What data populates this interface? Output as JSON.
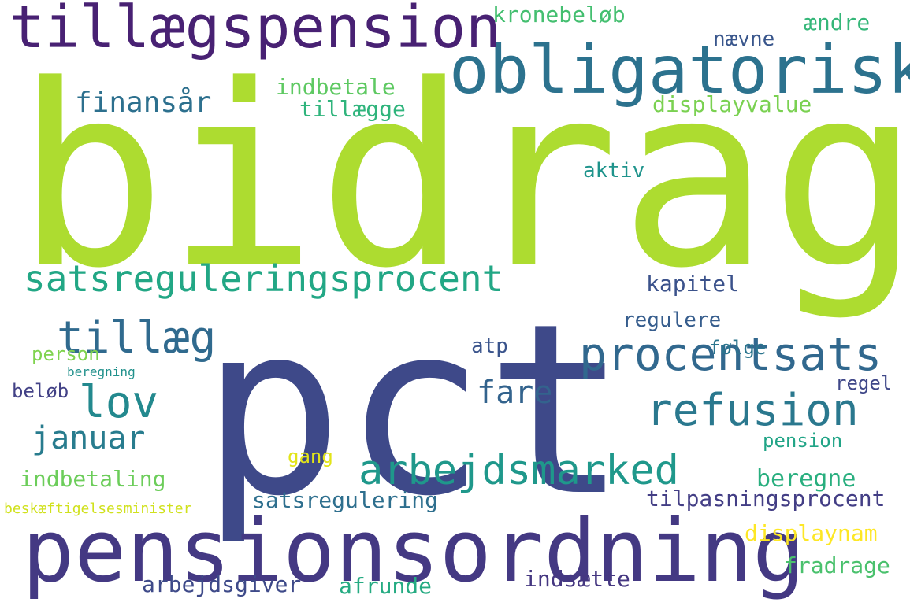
{
  "words": [
    {
      "text": "bidrag",
      "color": "#addc30"
    },
    {
      "text": "pct",
      "color": "#3e4989"
    },
    {
      "text": "pensionsordning",
      "color": "#443983"
    },
    {
      "text": "obligatorisk",
      "color": "#2c728e"
    },
    {
      "text": "tillægspension",
      "color": "#482173"
    },
    {
      "text": "satsreguleringsprocent",
      "color": "#22a785"
    },
    {
      "text": "arbejdsmarked",
      "color": "#1f988b"
    },
    {
      "text": "procentsats",
      "color": "#31688e"
    },
    {
      "text": "refusion",
      "color": "#2a788e"
    },
    {
      "text": "tillæg",
      "color": "#306a8e"
    },
    {
      "text": "lov",
      "color": "#23898e"
    },
    {
      "text": "januar",
      "color": "#287c8e"
    },
    {
      "text": "kronebeløb",
      "color": "#44bf70"
    },
    {
      "text": "ændre",
      "color": "#35b779"
    },
    {
      "text": "nævne",
      "color": "#39568c"
    },
    {
      "text": "finansår",
      "color": "#2d708e"
    },
    {
      "text": "indbetale",
      "color": "#5ec962"
    },
    {
      "text": "tillægge",
      "color": "#2fb47c"
    },
    {
      "text": "displayvalue",
      "color": "#7ad151"
    },
    {
      "text": "kapitel",
      "color": "#3b528b"
    },
    {
      "text": "fare",
      "color": "#33638d"
    },
    {
      "text": "beregne",
      "color": "#29af7f"
    },
    {
      "text": "tilpasningsprocent",
      "color": "#433e85"
    },
    {
      "text": "satsregulering",
      "color": "#2e6f8e"
    },
    {
      "text": "indbetaling",
      "color": "#6ccd5a"
    },
    {
      "text": "arbejdsgiver",
      "color": "#3e4a89"
    },
    {
      "text": "afrunde",
      "color": "#25ab82"
    },
    {
      "text": "indsætte",
      "color": "#453781"
    },
    {
      "text": "fradrage",
      "color": "#4ac16d"
    },
    {
      "text": "displaynam",
      "color": "#fde725"
    },
    {
      "text": "pension",
      "color": "#20a486"
    },
    {
      "text": "regel",
      "color": "#3f4788"
    },
    {
      "text": "følge",
      "color": "#2b758e"
    },
    {
      "text": "aktiv",
      "color": "#1f948c"
    },
    {
      "text": "atp",
      "color": "#3a548c"
    },
    {
      "text": "regulere",
      "color": "#365d8d"
    },
    {
      "text": "beløb",
      "color": "#424186"
    },
    {
      "text": "person",
      "color": "#7fd34e"
    },
    {
      "text": "gang",
      "color": "#e2e418"
    },
    {
      "text": "beskæftigelsesminister",
      "color": "#d0e11c"
    },
    {
      "text": "beregning",
      "color": "#21918c"
    }
  ]
}
